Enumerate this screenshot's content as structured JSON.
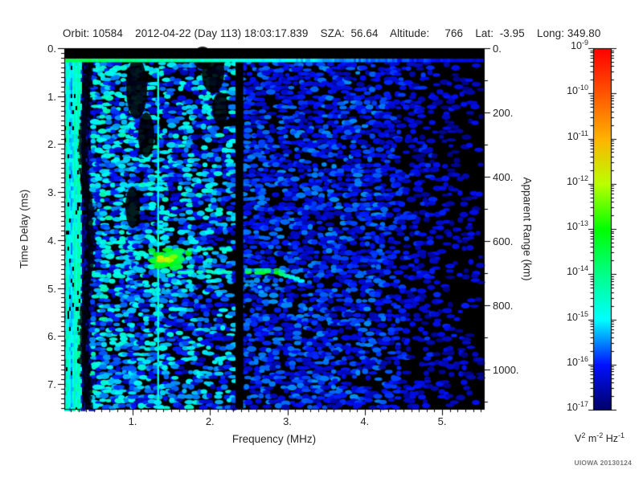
{
  "header": {
    "text": "Orbit: 10584    2012-04-22 (Day 113) 18:03:17.839    SZA:  56.64    Altitude:     766    Lat:  -3.95    Long: 349.80"
  },
  "axes": {
    "freq": {
      "title": "Frequency (MHz)",
      "min": 0.117,
      "max": 5.54,
      "major_ticks": [
        1,
        2,
        3,
        4,
        5
      ],
      "major_labels": [
        "1.",
        "2.",
        "3.",
        "4.",
        "5."
      ],
      "minor_step": 0.1
    },
    "delay": {
      "title": "Time Delay (ms)",
      "min": 0,
      "max": 7.52,
      "major_ticks": [
        0,
        1,
        2,
        3,
        4,
        5,
        6,
        7
      ],
      "major_labels": [
        "0.",
        "1.",
        "2.",
        "3.",
        "4.",
        "5.",
        "6.",
        "7."
      ],
      "minor_step": 0.1
    },
    "range": {
      "title": "Apparent Range (km)",
      "min": 0,
      "max": 1122,
      "major_ticks": [
        0,
        200,
        400,
        600,
        800,
        1000
      ],
      "major_labels": [
        "0.",
        "200.",
        "400.",
        "600.",
        "800.",
        "1000."
      ],
      "minor_step": 100
    }
  },
  "colorbar": {
    "unit": "V^2 m^-2 Hz^-1",
    "tick_labels": [
      "10^-9",
      "10^-10",
      "10^-11",
      "10^-12",
      "10^-13",
      "10^-14",
      "10^-15",
      "10^-16",
      "10^-17"
    ],
    "exponents": [
      -9,
      -10,
      -11,
      -12,
      -13,
      -14,
      -15,
      -16,
      -17
    ],
    "stops": [
      {
        "t": 0.0,
        "c": "#000066"
      },
      {
        "t": 0.125,
        "c": "#0010ff"
      },
      {
        "t": 0.25,
        "c": "#00ffff"
      },
      {
        "t": 0.375,
        "c": "#00ff88"
      },
      {
        "t": 0.5,
        "c": "#00ff00"
      },
      {
        "t": 0.625,
        "c": "#bbff00"
      },
      {
        "t": 0.75,
        "c": "#ffb300"
      },
      {
        "t": 0.875,
        "c": "#ff5500"
      },
      {
        "t": 1.0,
        "c": "#ff0000"
      }
    ]
  },
  "footer": {
    "credit": "UIOWA 20130124"
  },
  "chart_data": {
    "type": "heatmap",
    "x": {
      "label": "Frequency (MHz)",
      "range": [
        0.117,
        5.54
      ]
    },
    "y": {
      "label": "Time Delay (ms)",
      "range": [
        0,
        7.52
      ]
    },
    "y2": {
      "label": "Apparent Range (km)",
      "range": [
        0,
        1122
      ]
    },
    "z": {
      "label": "V^2 m^-2 Hz^-1",
      "scale": "log",
      "exponent_range": [
        -17,
        -9
      ]
    },
    "seed": 1337,
    "features": {
      "surface_reflection_line": {
        "delay_ms": 0.25,
        "freq_span_mhz": [
          0.117,
          5.54
        ]
      },
      "ionosphere_echo_trace": {
        "delay_ms": 4.67,
        "freq_span_mhz": [
          1.62,
          3.22
        ],
        "tail_delay_ms": 4.85
      },
      "echo_upper_branch": {
        "delay_ms": 4.2,
        "freq_span_mhz": [
          1.75,
          2.32
        ]
      },
      "echo_patch": {
        "freq_mhz": [
          0.95,
          1.85
        ],
        "delay_ms": [
          4.2,
          4.7
        ],
        "peak": {
          "freq_mhz": 1.45,
          "delay_ms": 4.4
        }
      },
      "interference_line_freq_mhz": 1.33,
      "data_gap_freq_mhz": [
        2.33,
        2.43
      ],
      "low_freq_noise_band_mhz": [
        0.117,
        0.5
      ]
    },
    "noise_profile": [
      {
        "f0": 0.117,
        "f1": 0.33,
        "style": "stripes",
        "base": 0.24,
        "var": 0.1,
        "black": 0.05
      },
      {
        "f0": 0.33,
        "f1": 0.5,
        "style": "dark",
        "base": 0.07,
        "var": 0.05,
        "black": 0.45
      },
      {
        "f0": 0.5,
        "f1": 1.0,
        "style": "speckle",
        "base": 0.15,
        "var": 0.1,
        "black": 0.16
      },
      {
        "f0": 1.0,
        "f1": 2.33,
        "style": "speckle",
        "base": 0.12,
        "var": 0.09,
        "black": 0.26
      },
      {
        "f0": 2.43,
        "f1": 4.3,
        "style": "blob",
        "base": 0.11,
        "var": 0.07,
        "black": 0.26
      },
      {
        "f0": 4.3,
        "f1": 5.54,
        "style": "fade",
        "base": 0.09,
        "var": 0.06,
        "black": 0.4
      }
    ]
  }
}
